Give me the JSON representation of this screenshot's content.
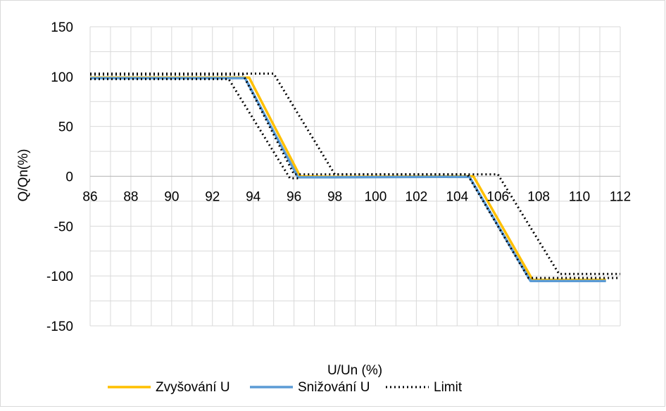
{
  "chart_data": {
    "type": "line",
    "title": "",
    "xlabel": "U/Un (%)",
    "ylabel": "Q/Qn(%)",
    "xlim": [
      86,
      112
    ],
    "ylim": [
      -150,
      150
    ],
    "x_ticks": [
      86,
      88,
      90,
      92,
      94,
      96,
      98,
      100,
      102,
      104,
      106,
      108,
      110,
      112
    ],
    "x_tick_labels": [
      "86",
      "88",
      "90",
      "92",
      "94",
      "96",
      "98",
      "100",
      "102",
      "104",
      "106",
      "108",
      "110",
      "112"
    ],
    "y_ticks": [
      150,
      100,
      50,
      0,
      -50,
      -100,
      -150
    ],
    "y_tick_labels": [
      "150",
      "100",
      "50",
      "0",
      "-50",
      "-100",
      "-150"
    ],
    "grid": true,
    "legend_position": "bottom",
    "series": [
      {
        "name": "Zvyšování U",
        "color": "#ffc000",
        "style": "solid",
        "points": [
          [
            86,
            99
          ],
          [
            93.8,
            99
          ],
          [
            96.3,
            0
          ],
          [
            98,
            -0.5
          ],
          [
            104.8,
            0
          ],
          [
            107.7,
            -104
          ],
          [
            111.3,
            -104
          ]
        ]
      },
      {
        "name": "Snižování U",
        "color": "#5b9bd5",
        "style": "solid",
        "points": [
          [
            86,
            98.5
          ],
          [
            93.6,
            98.5
          ],
          [
            96.2,
            -1
          ],
          [
            98,
            -1
          ],
          [
            104.6,
            -0.5
          ],
          [
            107.6,
            -105
          ],
          [
            111.3,
            -105
          ]
        ]
      },
      {
        "name": "Limit",
        "color": "#000000",
        "style": "dotted",
        "points": [
          [
            86,
            102
          ],
          [
            93.5,
            102
          ],
          [
            96,
            2
          ],
          [
            104.5,
            2
          ],
          [
            107.5,
            -102
          ],
          [
            112,
            -102
          ]
        ]
      },
      {
        "name": "",
        "color": "#000000",
        "style": "dotted",
        "points": [
          [
            86,
            97.5
          ],
          [
            92.8,
            97.5
          ],
          [
            95.8,
            -2
          ],
          [
            96.3,
            -2
          ]
        ]
      },
      {
        "name": "",
        "color": "#000000",
        "style": "dotted",
        "points": [
          [
            86,
            103
          ],
          [
            95,
            103
          ],
          [
            98,
            2
          ],
          [
            106,
            2
          ],
          [
            109,
            -98
          ],
          [
            112,
            -98
          ]
        ]
      }
    ]
  }
}
